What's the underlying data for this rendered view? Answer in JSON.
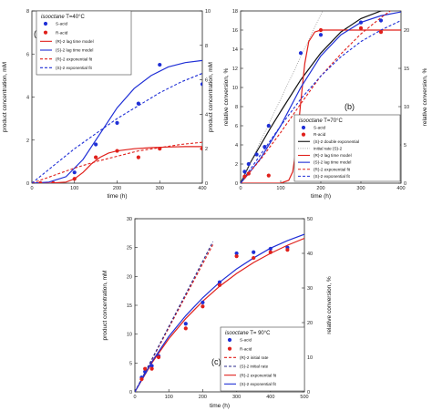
{
  "chart_data": [
    {
      "type": "line",
      "panel_label": "(a)",
      "xlabel": "time (h)",
      "ylabel": "product concentration, mM",
      "y2label": "relative conversion, %",
      "xlim": [
        0,
        400
      ],
      "ylim": [
        0,
        8
      ],
      "y2lim": [
        0,
        10
      ],
      "xticks": [
        0,
        100,
        200,
        300,
        400
      ],
      "yticks": [
        0,
        2,
        4,
        6,
        8
      ],
      "y2ticks": [
        0,
        2,
        4,
        6,
        8,
        10
      ],
      "legend_title_parts": [
        "isooctane",
        " T=40°C"
      ],
      "legend_position": "top-left",
      "series": [
        {
          "name": "S-acid",
          "kind": "points",
          "color": "#1f2fd6",
          "x": [
            20,
            50,
            100,
            150,
            200,
            250,
            300,
            400
          ],
          "y": [
            0,
            0,
            0.5,
            1.8,
            2.8,
            3.7,
            5.5,
            4.6
          ]
        },
        {
          "name": "R-acid",
          "kind": "points",
          "color": "#e0201b",
          "x": [
            20,
            50,
            100,
            150,
            200,
            250,
            300,
            400
          ],
          "y": [
            0,
            0,
            0.2,
            1.2,
            1.5,
            1.2,
            1.6,
            1.6
          ]
        },
        {
          "name": "(R)-2 lag time model",
          "kind": "solid",
          "color": "#e0201b",
          "x": [
            0,
            40,
            80,
            100,
            120,
            140,
            160,
            180,
            200,
            240,
            280,
            320,
            360,
            400
          ],
          "y": [
            0,
            0,
            0.05,
            0.2,
            0.5,
            0.9,
            1.2,
            1.4,
            1.5,
            1.6,
            1.65,
            1.68,
            1.7,
            1.7
          ]
        },
        {
          "name": "(S)-2 lag time model",
          "kind": "solid",
          "color": "#1f2fd6",
          "x": [
            0,
            40,
            80,
            120,
            160,
            200,
            240,
            280,
            320,
            360,
            400
          ],
          "y": [
            0,
            0.05,
            0.3,
            1.1,
            2.3,
            3.5,
            4.4,
            5.0,
            5.4,
            5.6,
            5.7
          ]
        },
        {
          "name": "(R)-2 exponential fit",
          "kind": "dashed",
          "color": "#e0201b",
          "x": [
            0,
            50,
            100,
            150,
            200,
            250,
            300,
            350,
            400
          ],
          "y": [
            0,
            0.35,
            0.7,
            1.0,
            1.25,
            1.5,
            1.65,
            1.8,
            1.9
          ]
        },
        {
          "name": "(S)-2 exponential fit",
          "kind": "dashed",
          "color": "#1f2fd6",
          "x": [
            0,
            50,
            100,
            150,
            200,
            250,
            300,
            350,
            400
          ],
          "y": [
            0,
            0.8,
            1.6,
            2.3,
            3.0,
            3.6,
            4.2,
            4.7,
            5.1
          ]
        }
      ]
    },
    {
      "type": "line",
      "panel_label": "(b)",
      "xlabel": "time (h)",
      "ylabel": "product concentration, mM",
      "y2label": "relative conversion, %",
      "xlim": [
        0,
        400
      ],
      "ylim": [
        0,
        18
      ],
      "y2lim": [
        0,
        22.5
      ],
      "xticks": [
        0,
        100,
        200,
        300,
        400
      ],
      "yticks": [
        0,
        2,
        4,
        6,
        8,
        10,
        12,
        14,
        16,
        18
      ],
      "y2ticks": [
        0,
        5,
        10,
        15,
        20
      ],
      "legend_title_parts": [
        "isooctane",
        " T=70°C"
      ],
      "legend_position": "bottom-right",
      "series": [
        {
          "name": "S-acid",
          "kind": "points",
          "color": "#1f2fd6",
          "x": [
            10,
            20,
            40,
            60,
            70,
            150,
            200,
            300,
            350
          ],
          "y": [
            1.2,
            2.0,
            3.0,
            3.8,
            6.0,
            13.6,
            15.5,
            16.8,
            17.0
          ]
        },
        {
          "name": "R-acid",
          "kind": "points",
          "color": "#e0201b",
          "x": [
            10,
            20,
            70,
            140,
            200,
            300,
            350
          ],
          "y": [
            0.7,
            1.0,
            0.8,
            5.5,
            16.0,
            16.2,
            15.8
          ]
        },
        {
          "name": "(S)-2 double exponential",
          "kind": "solid",
          "color": "#111111",
          "x": [
            0,
            25,
            50,
            75,
            100,
            150,
            200,
            250,
            300,
            350,
            400
          ],
          "y": [
            0,
            2.2,
            4.0,
            5.8,
            7.5,
            10.8,
            13.6,
            15.8,
            17.2,
            18.0,
            18.3
          ]
        },
        {
          "name": "initial rate (S)-2",
          "kind": "dotted",
          "color": "#888888",
          "x": [
            0,
            210
          ],
          "y": [
            0,
            18.5
          ]
        },
        {
          "name": "(R)-2 lag time model",
          "kind": "solid",
          "color": "#e0201b",
          "x": [
            0,
            100,
            120,
            130,
            140,
            150,
            160,
            170,
            185,
            200,
            250,
            300,
            350,
            400
          ],
          "y": [
            0,
            0,
            0.3,
            1.2,
            4.0,
            8.5,
            12.5,
            14.8,
            15.8,
            16.0,
            16.0,
            16.0,
            16.0,
            16.0
          ]
        },
        {
          "name": "(S)-2 lag time model",
          "kind": "solid",
          "color": "#1f2fd6",
          "x": [
            0,
            20,
            50,
            100,
            150,
            200,
            250,
            300,
            350,
            400
          ],
          "y": [
            0,
            1.0,
            2.6,
            6.0,
            10.0,
            13.3,
            15.5,
            16.8,
            17.5,
            17.9
          ]
        },
        {
          "name": "(R)-2 exponential fit",
          "kind": "dashed",
          "color": "#e0201b",
          "x": [
            0,
            50,
            100,
            150,
            200,
            250,
            300,
            350,
            400
          ],
          "y": [
            0,
            2.5,
            5.3,
            8.3,
            11.2,
            13.5,
            15.6,
            17.3,
            18.8
          ]
        },
        {
          "name": "(S)-2 exponential fit",
          "kind": "dashed",
          "color": "#1f2fd6",
          "x": [
            0,
            50,
            100,
            150,
            200,
            250,
            300,
            350,
            400
          ],
          "y": [
            0,
            3.0,
            6.0,
            8.8,
            11.2,
            13.2,
            14.8,
            16.0,
            17.0
          ]
        }
      ]
    },
    {
      "type": "line",
      "panel_label": "(c)",
      "xlabel": "time (h)",
      "ylabel": "product concentration, mM",
      "y2label": "relative conversion, %",
      "xlim": [
        0,
        500
      ],
      "ylim": [
        0,
        30
      ],
      "y2lim": [
        0,
        50
      ],
      "xticks": [
        0,
        100,
        200,
        300,
        400,
        500
      ],
      "yticks": [
        0,
        5,
        10,
        15,
        20,
        25,
        30
      ],
      "y2ticks": [
        0,
        10,
        20,
        30,
        40,
        50
      ],
      "legend_title_parts": [
        "isooctane",
        " T= 90°C"
      ],
      "legend_position": "bottom-right",
      "series": [
        {
          "name": "S-acid",
          "kind": "points",
          "color": "#1f2fd6",
          "x": [
            20,
            30,
            50,
            70,
            150,
            200,
            250,
            300,
            350,
            400,
            450
          ],
          "y": [
            2.5,
            3.5,
            4.5,
            6.2,
            11.8,
            15.5,
            19.0,
            24.0,
            24.2,
            24.8,
            25.0
          ]
        },
        {
          "name": "R-acid",
          "kind": "points",
          "color": "#e0201b",
          "x": [
            20,
            30,
            50,
            70,
            150,
            200,
            250,
            300,
            350,
            400,
            450
          ],
          "y": [
            2.2,
            4.0,
            4.0,
            6.0,
            11.0,
            14.8,
            18.5,
            23.5,
            23.2,
            24.2,
            24.6
          ]
        },
        {
          "name": "(R)-2 initial rate",
          "kind": "dashed",
          "color": "#e0201b",
          "x": [
            0,
            230
          ],
          "y": [
            0,
            25.5
          ]
        },
        {
          "name": "(S)-2 initial rate",
          "kind": "dashed",
          "color": "#2b2b8c",
          "x": [
            0,
            230
          ],
          "y": [
            0,
            26.0
          ]
        },
        {
          "name": "(R)-2 exponential fit",
          "kind": "solid",
          "color": "#e0201b",
          "x": [
            0,
            50,
            100,
            150,
            200,
            250,
            300,
            350,
            400,
            450,
            500
          ],
          "y": [
            0,
            5.0,
            9.2,
            12.7,
            15.7,
            18.3,
            20.5,
            22.4,
            24.0,
            25.4,
            26.6
          ]
        },
        {
          "name": "(S)-2 exponential fit",
          "kind": "solid",
          "color": "#1f2fd6",
          "x": [
            0,
            50,
            100,
            150,
            200,
            250,
            300,
            350,
            400,
            450,
            500
          ],
          "y": [
            0,
            5.2,
            9.6,
            13.2,
            16.3,
            19.0,
            21.3,
            23.2,
            24.9,
            26.2,
            27.3
          ]
        }
      ]
    }
  ]
}
